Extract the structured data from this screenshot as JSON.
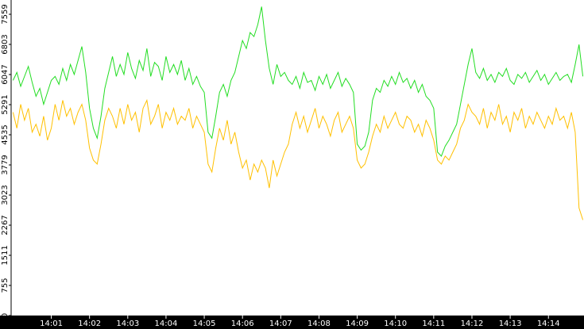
{
  "chart_data": {
    "type": "line",
    "x": [
      0,
      0.1,
      0.2,
      0.3,
      0.4,
      0.5,
      0.6,
      0.7,
      0.8,
      0.9,
      1,
      1.1,
      1.2,
      1.3,
      1.4,
      1.5,
      1.6,
      1.7,
      1.8,
      1.9,
      2,
      2.1,
      2.2,
      2.3,
      2.4,
      2.5,
      2.6,
      2.7,
      2.8,
      2.9,
      3,
      3.1,
      3.2,
      3.3,
      3.4,
      3.5,
      3.6,
      3.7,
      3.8,
      3.9,
      4,
      4.1,
      4.2,
      4.3,
      4.4,
      4.5,
      4.6,
      4.7,
      4.8,
      4.9,
      5,
      5.1,
      5.2,
      5.3,
      5.4,
      5.5,
      5.6,
      5.7,
      5.8,
      5.9,
      6,
      6.1,
      6.2,
      6.3,
      6.4,
      6.5,
      6.6,
      6.7,
      6.8,
      6.9,
      7,
      7.1,
      7.2,
      7.3,
      7.4,
      7.5,
      7.6,
      7.7,
      7.8,
      7.9,
      8,
      8.1,
      8.2,
      8.3,
      8.4,
      8.5,
      8.6,
      8.7,
      8.8,
      8.9,
      9,
      9.1,
      9.2,
      9.3,
      9.4,
      9.5,
      9.6,
      9.7,
      9.8,
      9.9,
      10,
      10.1,
      10.2,
      10.3,
      10.4,
      10.5,
      10.6,
      10.7,
      10.8,
      10.9,
      11,
      11.1,
      11.2,
      11.3,
      11.4,
      11.5,
      11.6,
      11.7,
      11.8,
      11.9,
      12,
      12.1,
      12.2,
      12.3,
      12.4,
      12.5,
      12.6,
      12.7,
      12.8,
      12.9,
      13,
      13.1,
      13.2,
      13.3,
      13.4,
      13.5,
      13.6,
      13.7,
      13.8,
      13.9,
      14,
      14.1,
      14.2,
      14.3,
      14.4,
      14.5,
      14.6,
      14.7,
      14.8,
      14.9
    ],
    "series": [
      {
        "color": "#22dd22",
        "values": [
          5900,
          6100,
          5750,
          6000,
          6250,
          5850,
          5500,
          5700,
          5300,
          5600,
          5900,
          6000,
          5800,
          6200,
          5900,
          6300,
          6050,
          6400,
          6750,
          6100,
          5200,
          4700,
          4450,
          5000,
          5700,
          6100,
          6500,
          6000,
          6300,
          6050,
          6600,
          6200,
          5950,
          6400,
          6150,
          6700,
          6000,
          6350,
          6250,
          5900,
          6500,
          6100,
          6300,
          6050,
          6400,
          5900,
          6200,
          5800,
          6000,
          5750,
          5600,
          4600,
          4450,
          5000,
          5600,
          5800,
          5500,
          5900,
          6100,
          6500,
          6900,
          6700,
          7100,
          7000,
          7300,
          7750,
          6900,
          6200,
          5800,
          6300,
          6000,
          6100,
          5900,
          5800,
          6000,
          5700,
          6100,
          5850,
          5900,
          5650,
          6000,
          5800,
          6050,
          5700,
          5900,
          6100,
          5750,
          5950,
          5800,
          5600,
          4300,
          4150,
          4250,
          4600,
          5400,
          5700,
          5600,
          5900,
          5750,
          6000,
          5800,
          6100,
          5850,
          5950,
          5700,
          5900,
          5600,
          5800,
          5500,
          5400,
          5200,
          4100,
          4000,
          4250,
          4400,
          4600,
          4800,
          5300,
          5800,
          6300,
          6700,
          6100,
          5950,
          6200,
          5900,
          6050,
          5850,
          6100,
          6000,
          6200,
          5900,
          5800,
          6050,
          5950,
          6100,
          5850,
          6000,
          6150,
          5900,
          6050,
          5800,
          5950,
          6100,
          5900,
          6000,
          6050,
          5850,
          6300,
          6800,
          6000
        ]
      },
      {
        "color": "#ffc000",
        "values": [
          5100,
          4700,
          5300,
          4900,
          5200,
          4600,
          4800,
          4500,
          5000,
          4400,
          4700,
          5300,
          4900,
          5400,
          5000,
          5200,
          4800,
          5100,
          5300,
          4900,
          4200,
          3900,
          3800,
          4300,
          4900,
          5200,
          5000,
          4700,
          5200,
          4800,
          5300,
          4900,
          5100,
          4600,
          5200,
          5400,
          4800,
          5000,
          5300,
          4700,
          5100,
          4900,
          5200,
          4800,
          5000,
          4900,
          5200,
          4700,
          5000,
          4800,
          4600,
          3800,
          3600,
          4200,
          4700,
          4400,
          4900,
          4300,
          4600,
          4100,
          3700,
          3900,
          3400,
          3800,
          3600,
          3900,
          3700,
          3200,
          3900,
          3500,
          3800,
          4100,
          4300,
          4800,
          5100,
          4700,
          5000,
          4600,
          4900,
          5200,
          4700,
          5000,
          4800,
          4500,
          4900,
          5100,
          4600,
          4800,
          5000,
          4700,
          3900,
          3700,
          3800,
          4100,
          4500,
          4800,
          4600,
          5000,
          4700,
          4900,
          5100,
          4800,
          4700,
          5000,
          4900,
          4600,
          4800,
          4500,
          4900,
          4700,
          4400,
          3900,
          3800,
          4000,
          3900,
          4100,
          4300,
          4700,
          4900,
          5300,
          5100,
          5000,
          4800,
          5200,
          4700,
          5100,
          4900,
          5300,
          4800,
          5000,
          4600,
          5100,
          4900,
          5200,
          4700,
          5000,
          4800,
          5100,
          4900,
          4700,
          5000,
          4800,
          5200,
          4900,
          5000,
          4700,
          5100,
          4600,
          2700,
          2400
        ]
      }
    ],
    "xlim": [
      -0.05,
      14.93
    ],
    "ylim": [
      0,
      7917
    ],
    "xticks": [
      {
        "value": 1,
        "label": "14:01"
      },
      {
        "value": 2,
        "label": "14:02"
      },
      {
        "value": 3,
        "label": "14:03"
      },
      {
        "value": 4,
        "label": "14:04"
      },
      {
        "value": 5,
        "label": "14:05"
      },
      {
        "value": 6,
        "label": "14:06"
      },
      {
        "value": 7,
        "label": "14:07"
      },
      {
        "value": 8,
        "label": "14:08"
      },
      {
        "value": 9,
        "label": "14:09"
      },
      {
        "value": 10,
        "label": "14:10"
      },
      {
        "value": 11,
        "label": "14:11"
      },
      {
        "value": 12,
        "label": "14:12"
      },
      {
        "value": 13,
        "label": "14:13"
      },
      {
        "value": 14,
        "label": "14:14"
      }
    ],
    "yticks": [
      0,
      755,
      1511,
      2267,
      3023,
      3779,
      4535,
      5291,
      6047,
      6803,
      7559
    ],
    "grid": false
  }
}
